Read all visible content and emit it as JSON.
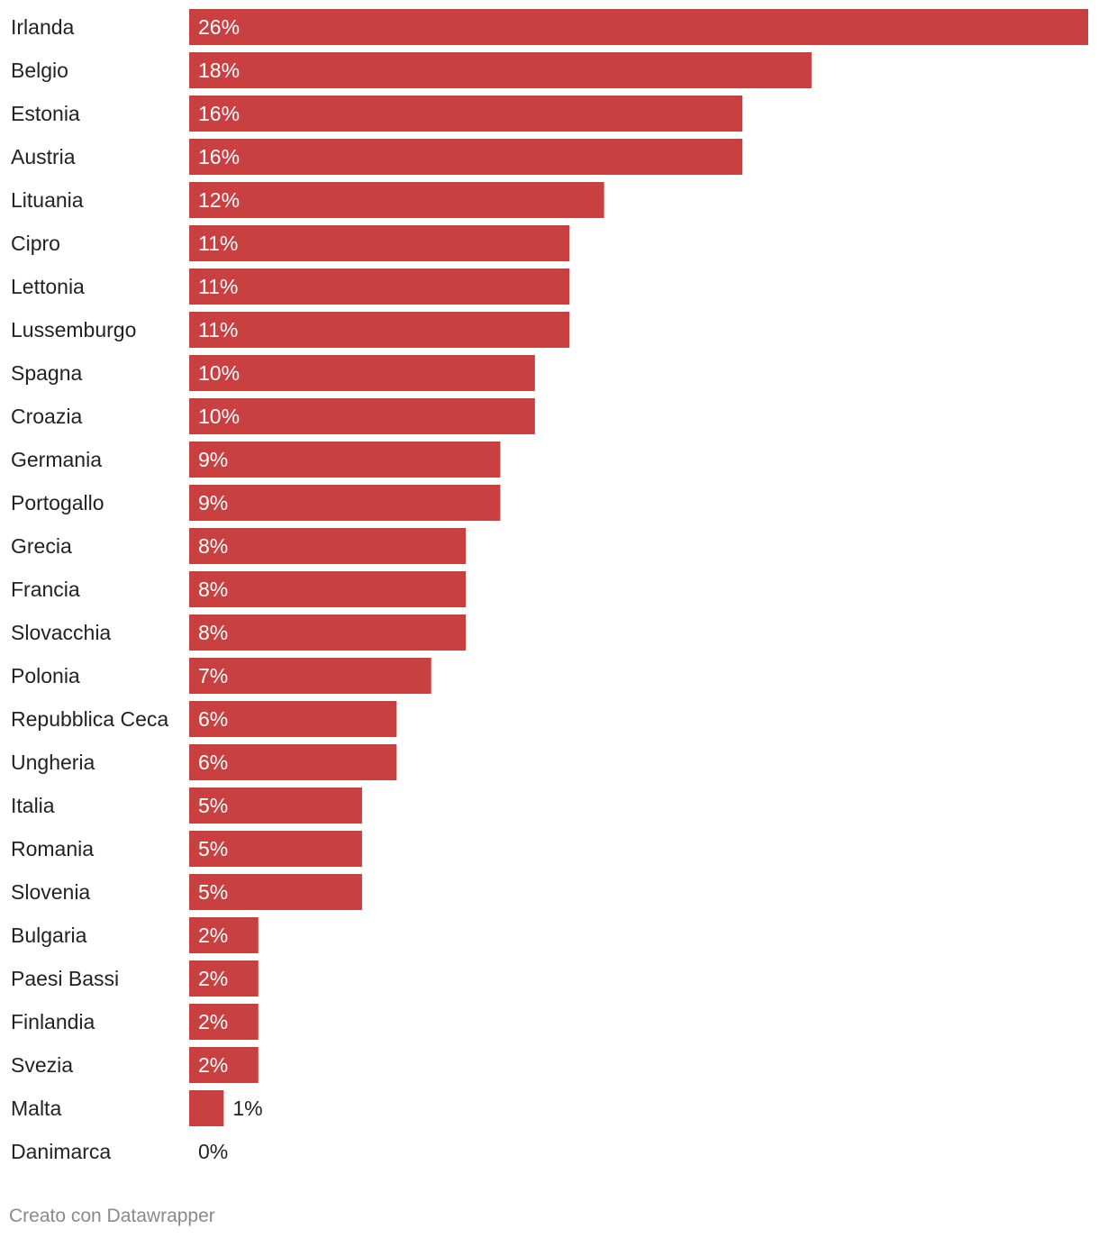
{
  "chart_data": {
    "type": "bar",
    "orientation": "horizontal",
    "categories": [
      "Irlanda",
      "Belgio",
      "Estonia",
      "Austria",
      "Lituania",
      "Cipro",
      "Lettonia",
      "Lussemburgo",
      "Spagna",
      "Croazia",
      "Germania",
      "Portogallo",
      "Grecia",
      "Francia",
      "Slovacchia",
      "Polonia",
      "Repubblica Ceca",
      "Ungheria",
      "Italia",
      "Romania",
      "Slovenia",
      "Bulgaria",
      "Paesi Bassi",
      "Finlandia",
      "Svezia",
      "Malta",
      "Danimarca"
    ],
    "values": [
      26,
      18,
      16,
      16,
      12,
      11,
      11,
      11,
      10,
      10,
      9,
      9,
      8,
      8,
      8,
      7,
      6,
      6,
      5,
      5,
      5,
      2,
      2,
      2,
      2,
      1,
      0
    ],
    "value_suffix": "%",
    "xlim": [
      0,
      26
    ],
    "grid": false,
    "legend": "none",
    "bar_color": "#c94041",
    "label_inside_color": "#ffffff",
    "label_outside_color": "#222222"
  },
  "footer": {
    "credit": "Creato con Datawrapper"
  }
}
